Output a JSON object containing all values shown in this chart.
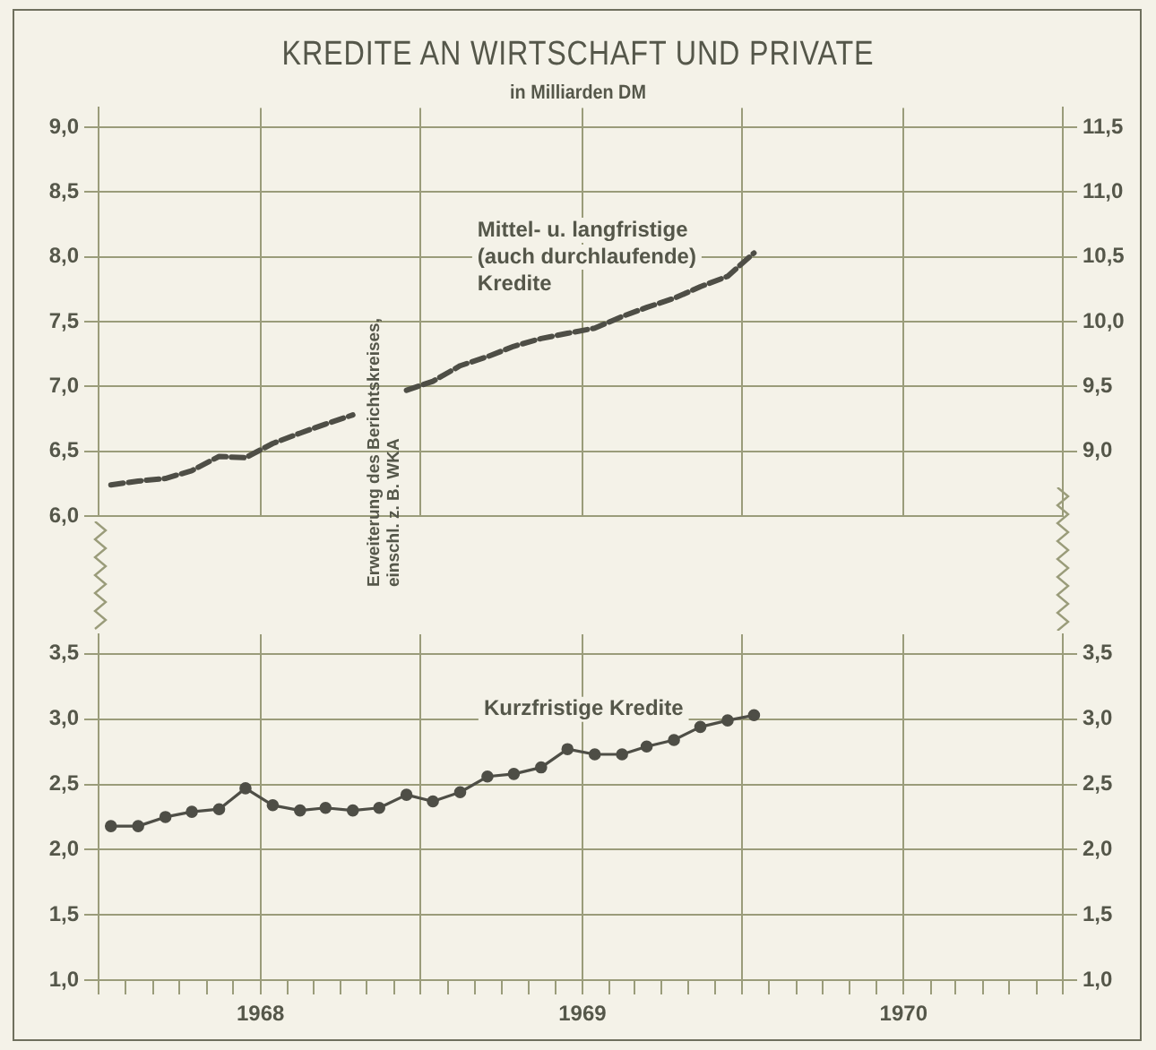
{
  "chart_data": [
    {
      "type": "line",
      "title": "KREDITE AN WIRTSCHAFT UND PRIVATE",
      "subtitle": "in Milliarden DM",
      "annotations": [
        "Erweiterung des Berichtskreises,\neinschl. z. B. WKA"
      ],
      "x": [
        "1967-07-15",
        "1967-08-15",
        "1967-09-15",
        "1967-10-15",
        "1967-11-15",
        "1967-12-15",
        "1968-01-15",
        "1968-02-15",
        "1968-03-15",
        "1968-04-15",
        "1968-05-15",
        "1968-06-15",
        "1968-07-15",
        "1968-08-15",
        "1968-09-15",
        "1968-10-15",
        "1968-11-15",
        "1968-12-15",
        "1969-01-15",
        "1969-02-15",
        "1969-03-15",
        "1969-04-15",
        "1969-05-15",
        "1969-06-15",
        "1969-07-15"
      ],
      "series": [
        {
          "name": "Mittel- u. langfristige\n(auch durchlaufende)\nKredite",
          "color": "#4e4e46",
          "values": [
            6.24,
            6.27,
            6.29,
            6.35,
            6.46,
            6.45,
            6.56,
            6.64,
            6.71,
            6.78,
            null,
            6.97,
            7.04,
            7.16,
            7.23,
            7.31,
            7.37,
            7.41,
            7.45,
            7.54,
            7.61,
            7.68,
            7.77,
            7.85,
            8.03
          ]
        }
      ],
      "marker": "none",
      "line_style": "dashed",
      "grid": true,
      "legend": false,
      "tick_labels": "y",
      "xlim": [
        "1967-07",
        "1970-07"
      ],
      "xticks": [
        {
          "value": "1967-07",
          "label": null
        },
        {
          "value": "1968",
          "label": null
        },
        {
          "value": "1968-07",
          "label": null
        },
        {
          "value": "1969",
          "label": null
        },
        {
          "value": "1969-07",
          "label": null
        },
        {
          "value": "1970",
          "label": null
        },
        {
          "value": "1970-07",
          "label": null
        }
      ],
      "ylim": [
        6.0,
        9.15
      ],
      "yticks": [
        {
          "value": 6.0,
          "label": "6,0"
        },
        {
          "value": 6.5,
          "label": "6,5"
        },
        {
          "value": 7.0,
          "label": "7,0"
        },
        {
          "value": 7.5,
          "label": "7,5"
        },
        {
          "value": 8.0,
          "label": "8,0"
        },
        {
          "value": 8.5,
          "label": "8,5"
        },
        {
          "value": 9.0,
          "label": "9,0"
        }
      ],
      "y2lim": [
        8.5,
        11.65
      ],
      "y2ticks": [
        {
          "value": 9.0,
          "label": "9,0"
        },
        {
          "value": 9.5,
          "label": "9,5"
        },
        {
          "value": 10.0,
          "label": "10,0"
        },
        {
          "value": 10.5,
          "label": "10,5"
        },
        {
          "value": 11.0,
          "label": "11,0"
        },
        {
          "value": 11.5,
          "label": "11,5"
        }
      ]
    },
    {
      "type": "line",
      "x": [
        "1967-07-15",
        "1967-08-15",
        "1967-09-15",
        "1967-10-15",
        "1967-11-15",
        "1967-12-15",
        "1968-01-15",
        "1968-02-15",
        "1968-03-15",
        "1968-04-15",
        "1968-05-15",
        "1968-06-15",
        "1968-07-15",
        "1968-08-15",
        "1968-09-15",
        "1968-10-15",
        "1968-11-15",
        "1968-12-15",
        "1969-01-15",
        "1969-02-15",
        "1969-03-15",
        "1969-04-15",
        "1969-05-15",
        "1969-06-15",
        "1969-07-15"
      ],
      "series": [
        {
          "name": "Kurzfristige Kredite",
          "color": "#4e4e46",
          "values": [
            2.18,
            2.18,
            2.25,
            2.29,
            2.31,
            2.47,
            2.34,
            2.3,
            2.32,
            2.3,
            2.32,
            2.42,
            2.37,
            2.44,
            2.56,
            2.58,
            2.63,
            2.77,
            2.73,
            2.73,
            2.79,
            2.84,
            2.94,
            2.99,
            3.03
          ]
        }
      ],
      "marker": "circle",
      "line_style": "solid",
      "grid": true,
      "legend": false,
      "xlim": [
        "1967-07",
        "1970-07"
      ],
      "xticks": [
        {
          "value": "1967-07",
          "label": null
        },
        {
          "value": "1967-08",
          "label": null
        },
        {
          "value": "1967-09",
          "label": null
        },
        {
          "value": "1967-10",
          "label": null
        },
        {
          "value": "1967-11",
          "label": null
        },
        {
          "value": "1967-12",
          "label": null
        },
        "1968",
        {
          "value": "1968-02",
          "label": null
        },
        {
          "value": "1968-03",
          "label": null
        },
        {
          "value": "1968-04",
          "label": null
        },
        {
          "value": "1968-05",
          "label": null
        },
        {
          "value": "1968-06",
          "label": null
        },
        {
          "value": "1968-07",
          "label": null
        },
        {
          "value": "1968-08",
          "label": null
        },
        {
          "value": "1968-09",
          "label": null
        },
        {
          "value": "1968-10",
          "label": null
        },
        {
          "value": "1968-11",
          "label": null
        },
        {
          "value": "1968-12",
          "label": null
        },
        "1969",
        {
          "value": "1969-02",
          "label": null
        },
        {
          "value": "1969-03",
          "label": null
        },
        {
          "value": "1969-04",
          "label": null
        },
        {
          "value": "1969-05",
          "label": null
        },
        {
          "value": "1969-06",
          "label": null
        },
        {
          "value": "1969-07",
          "label": null
        },
        {
          "value": "1969-08",
          "label": null
        },
        {
          "value": "1969-09",
          "label": null
        },
        {
          "value": "1969-10",
          "label": null
        },
        {
          "value": "1969-11",
          "label": null
        },
        {
          "value": "1969-12",
          "label": null
        },
        "1970",
        {
          "value": "1970-02",
          "label": null
        },
        {
          "value": "1970-03",
          "label": null
        },
        {
          "value": "1970-04",
          "label": null
        },
        {
          "value": "1970-05",
          "label": null
        },
        {
          "value": "1970-06",
          "label": null
        },
        {
          "value": "1970-07",
          "label": null
        }
      ],
      "ylim": [
        1.0,
        3.65
      ],
      "yticks": [
        {
          "value": 1.0,
          "label": "1,0"
        },
        {
          "value": 1.5,
          "label": "1,5"
        },
        {
          "value": 2.0,
          "label": "2,0"
        },
        {
          "value": 2.5,
          "label": "2,5"
        },
        {
          "value": 3.0,
          "label": "3,0"
        },
        {
          "value": 3.5,
          "label": "3,5"
        }
      ],
      "y2lim": [
        1.0,
        3.65
      ],
      "y2ticks": [
        {
          "value": 1.0,
          "label": "1,0"
        },
        {
          "value": 1.5,
          "label": "1,5"
        },
        {
          "value": 2.0,
          "label": "2,0"
        },
        {
          "value": 2.5,
          "label": "2,5"
        },
        {
          "value": 3.0,
          "label": "3,0"
        },
        {
          "value": 3.5,
          "label": "3,5"
        }
      ]
    }
  ]
}
